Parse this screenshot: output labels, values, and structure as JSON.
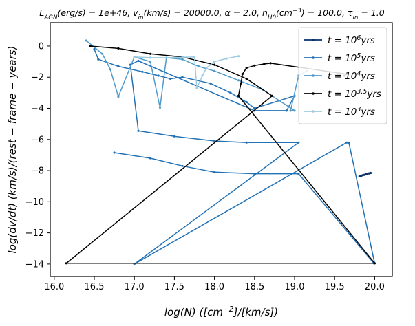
{
  "chart_data": {
    "type": "line",
    "title": "L_AGN(erg/s) = 1e+46, v_in(km/s) = 20000.0, α = 2.0, n_H0(cm^-3) = 100.0, τ_in = 1.0",
    "title_parts": [
      "L",
      "AGN",
      "(erg/s) = 1e+46, v",
      "in",
      "(km/s) = 20000.0, α = 2.0, n",
      "H0",
      "(cm",
      "−3",
      ") = 100.0, τ",
      "in",
      " = 1.0"
    ],
    "xlabel": "log(N)   ([cm^-2]/[km/s])",
    "xlabel_parts": [
      "log(N)   ([cm",
      "−2",
      "]/[km/s])"
    ],
    "ylabel": "log(dv/dt)   (km/s)/(rest − frame − years)",
    "xlim": [
      15.95,
      20.22
    ],
    "ylim": [
      -14.8,
      1.5
    ],
    "xticks": [
      "16.0",
      "16.5",
      "17.0",
      "17.5",
      "18.0",
      "18.5",
      "19.0",
      "19.5",
      "20.0"
    ],
    "yticks": [
      "0",
      "−2",
      "−4",
      "−6",
      "−8",
      "−10",
      "−12",
      "−14"
    ],
    "legend_position": "top-right",
    "grid": false,
    "colors": {
      "series_1e6": "#08306b",
      "series_1e5": "#2171b5",
      "series_1e4": "#4e9acb",
      "series_1e35": "#000000",
      "series_1e3": "#9ecae1"
    },
    "series": [
      {
        "name": "t = 10^6 yrs",
        "label_parts": [
          "t = 10",
          "6",
          "yrs"
        ],
        "color": "#08306b",
        "points": [
          [
            19.95,
            -8.15
          ],
          [
            19.93,
            -8.18
          ],
          [
            19.91,
            -8.21
          ],
          [
            19.89,
            -8.24
          ],
          [
            19.87,
            -8.27
          ],
          [
            19.85,
            -8.3
          ],
          [
            19.83,
            -8.34
          ],
          [
            19.81,
            -8.37
          ]
        ]
      },
      {
        "name": "t = 10^5 yrs",
        "label_parts": [
          "t = 10",
          "5",
          "yrs"
        ],
        "color": "#2171b5",
        "points": [
          [
            16.5,
            -0.2
          ],
          [
            16.55,
            -0.85
          ],
          [
            16.8,
            -1.3
          ],
          [
            17.1,
            -1.65
          ],
          [
            17.3,
            -1.9
          ],
          [
            17.45,
            -2.1
          ],
          [
            17.6,
            -2.0
          ],
          [
            17.95,
            -2.4
          ],
          [
            18.2,
            -3.0
          ],
          [
            18.4,
            -3.6
          ],
          [
            18.5,
            -4.0
          ],
          [
            19.0,
            -3.2
          ],
          [
            18.9,
            -4.15
          ],
          [
            18.5,
            -4.15
          ],
          [
            17.05,
            -0.95
          ],
          [
            16.95,
            -1.2
          ],
          [
            17.05,
            -5.45
          ],
          [
            17.5,
            -5.8
          ],
          [
            18.0,
            -6.1
          ],
          [
            18.4,
            -6.2
          ],
          [
            19.05,
            -6.2
          ],
          [
            17.0,
            -14.0
          ],
          [
            19.65,
            -6.2
          ],
          [
            19.68,
            -6.25
          ],
          [
            20.0,
            -13.95
          ],
          [
            19.99,
            -13.95
          ],
          [
            19.05,
            -8.2
          ],
          [
            18.5,
            -8.2
          ],
          [
            18.0,
            -8.1
          ],
          [
            17.6,
            -7.7
          ],
          [
            17.2,
            -7.2
          ],
          [
            16.75,
            -6.85
          ]
        ]
      },
      {
        "name": "t = 10^4 yrs",
        "label_parts": [
          "t = 10",
          "4",
          "yrs"
        ],
        "color": "#4e9acb",
        "points": [
          [
            16.4,
            0.35
          ],
          [
            16.6,
            -0.5
          ],
          [
            16.7,
            -1.5
          ],
          [
            16.8,
            -3.25
          ],
          [
            17.0,
            -0.7
          ],
          [
            17.2,
            -1.0
          ],
          [
            17.32,
            -3.95
          ],
          [
            17.4,
            -0.75
          ],
          [
            17.6,
            -0.85
          ],
          [
            17.8,
            -1.3
          ],
          [
            18.0,
            -1.6
          ],
          [
            18.3,
            -2.2
          ],
          [
            18.6,
            -2.8
          ],
          [
            19.0,
            -4.15
          ],
          [
            18.95,
            -4.15
          ],
          [
            19.05,
            -1.9
          ],
          [
            19.15,
            -1.6
          ]
        ]
      },
      {
        "name": "t = 10^3.5 yrs",
        "label_parts": [
          "t = 10",
          "3.5",
          "yrs"
        ],
        "color": "#000000",
        "points": [
          [
            16.45,
            0.0
          ],
          [
            16.8,
            -0.15
          ],
          [
            17.2,
            -0.5
          ],
          [
            17.6,
            -0.7
          ],
          [
            18.0,
            -1.2
          ],
          [
            18.4,
            -2.1
          ],
          [
            18.72,
            -3.2
          ],
          [
            16.15,
            -13.95
          ],
          [
            20.0,
            -13.95
          ],
          [
            18.3,
            -3.2
          ],
          [
            18.33,
            -2.4
          ],
          [
            18.35,
            -1.8
          ],
          [
            18.4,
            -1.4
          ],
          [
            18.5,
            -1.25
          ],
          [
            18.62,
            -1.15
          ],
          [
            18.7,
            -1.1
          ],
          [
            19.65,
            -1.8
          ],
          [
            19.62,
            -1.9
          ]
        ]
      },
      {
        "name": "t = 10^3 yrs",
        "label_parts": [
          "t = 10",
          "3",
          "yrs"
        ],
        "color": "#9ecae1",
        "points": [
          [
            17.0,
            -0.7
          ],
          [
            17.2,
            -0.75
          ],
          [
            17.4,
            -0.75
          ],
          [
            17.6,
            -0.72
          ],
          [
            17.75,
            -0.7
          ],
          [
            17.78,
            -2.7
          ],
          [
            17.85,
            -1.9
          ],
          [
            17.9,
            -1.4
          ],
          [
            18.0,
            -1.0
          ],
          [
            18.15,
            -0.8
          ],
          [
            18.3,
            -0.65
          ]
        ]
      }
    ]
  }
}
